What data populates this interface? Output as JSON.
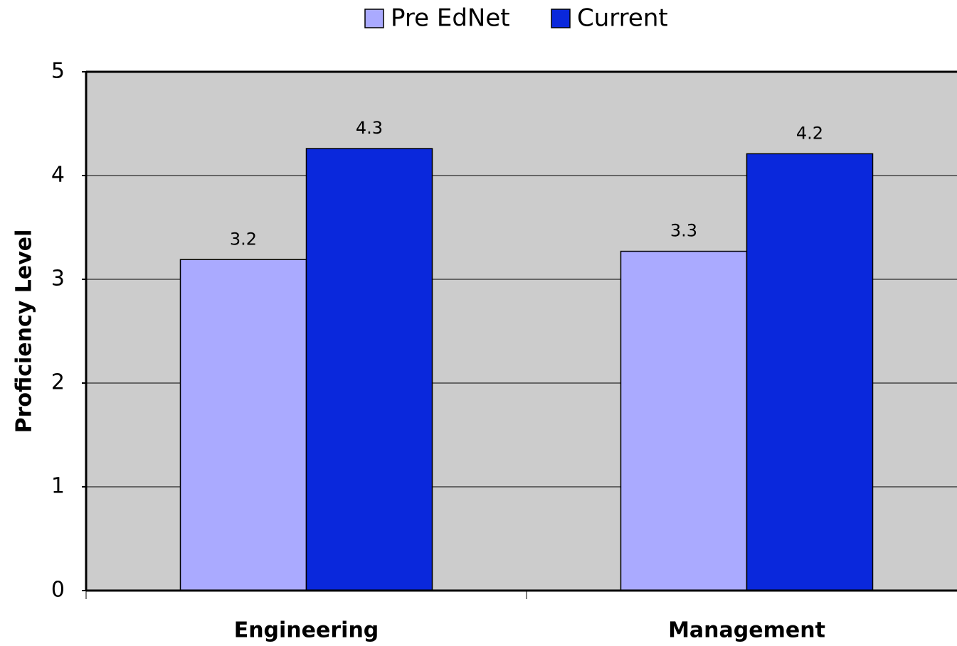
{
  "chart_data": {
    "type": "bar",
    "y_label": "Proficiency Level",
    "categories": [
      "Engineering",
      "Management"
    ],
    "series": [
      {
        "name": "Pre EdNet",
        "color": "#aaaaff",
        "values": [
          3.19,
          3.27
        ],
        "value_labels": [
          "3.2",
          "3.3"
        ]
      },
      {
        "name": "Current",
        "color": "#0a28dc",
        "values": [
          4.26,
          4.21
        ],
        "value_labels": [
          "4.3",
          "4.2"
        ]
      }
    ],
    "ylim": [
      0,
      5
    ],
    "yticks": [
      0,
      1,
      2,
      3,
      4,
      5
    ],
    "grid": true,
    "legend": "top"
  }
}
